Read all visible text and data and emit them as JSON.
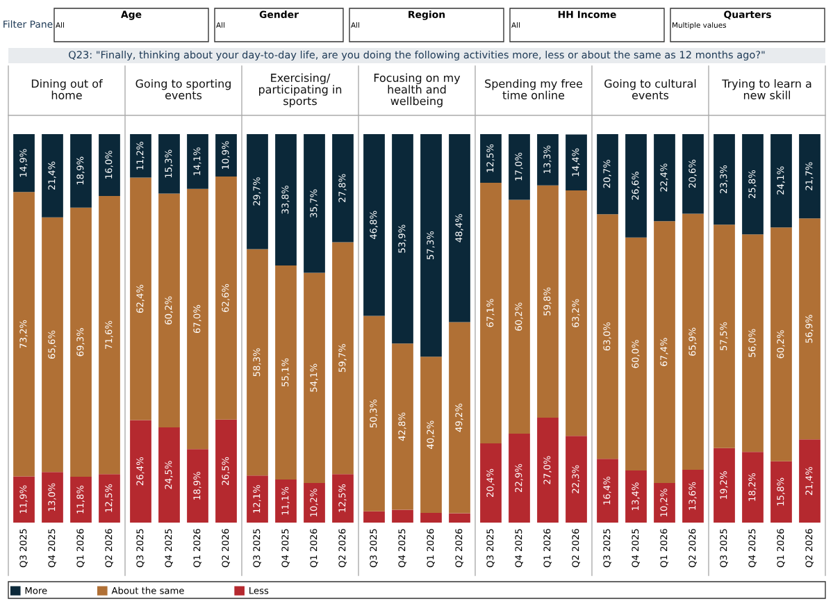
{
  "chart_data": [
    {
      "type": "other",
      "title": "Q23: \"Finally, thinking about your day-to-day life, are you doing the following activities more, less or about the same as 12 months ago?\"",
      "annotations": [
        "Filter Pane",
        "Age",
        "All",
        "Gender",
        "All",
        "Region",
        "All",
        "HH Income",
        "All",
        "Quarters",
        "Multiple values"
      ]
    },
    {
      "type": "bar",
      "stacked": true,
      "title": "Dining out of home",
      "categories": [
        "Q3 2025",
        "Q4 2025",
        "Q1 2026",
        "Q2 2026"
      ],
      "ylim": [
        0,
        100
      ],
      "tick_labels": "x",
      "legend": "bottom",
      "series": [
        {
          "name": "Less",
          "color": "#b5292f",
          "values": [
            11.9,
            13.0,
            11.8,
            12.5
          ],
          "value_labels": [
            "11,9%",
            "13,0%",
            "11,8%",
            "12,5%"
          ]
        },
        {
          "name": "About the same",
          "color": "#b07035",
          "values": [
            73.2,
            65.6,
            69.3,
            71.6
          ],
          "value_labels": [
            "73,2%",
            "65,6%",
            "69,3%",
            "71,6%"
          ]
        },
        {
          "name": "More",
          "color": "#0b2839",
          "values": [
            14.9,
            21.4,
            18.9,
            16.0
          ],
          "value_labels": [
            "14,9%",
            "21,4%",
            "18,9%",
            "16,0%"
          ]
        }
      ]
    },
    {
      "type": "bar",
      "stacked": true,
      "title": "Going to sporting events",
      "categories": [
        "Q3 2025",
        "Q4 2025",
        "Q1 2026",
        "Q2 2026"
      ],
      "ylim": [
        0,
        100
      ],
      "tick_labels": "x",
      "series": [
        {
          "color": "#b5292f",
          "values": [
            26.4,
            24.5,
            18.9,
            26.5
          ],
          "value_labels": [
            "26,4%",
            "24,5%",
            "18,9%",
            "26,5%"
          ]
        },
        {
          "color": "#b07035",
          "values": [
            62.4,
            60.2,
            67.0,
            62.6
          ],
          "value_labels": [
            "62,4%",
            "60,2%",
            "67,0%",
            "62,6%"
          ]
        },
        {
          "color": "#0b2839",
          "values": [
            11.2,
            15.3,
            14.1,
            10.9
          ],
          "value_labels": [
            "11,2%",
            "15,3%",
            "14,1%",
            "10,9%"
          ]
        }
      ]
    },
    {
      "type": "bar",
      "stacked": true,
      "title": "Exercising/ participating in sports",
      "categories": [
        "Q3 2025",
        "Q4 2025",
        "Q1 2026",
        "Q2 2026"
      ],
      "ylim": [
        0,
        100
      ],
      "tick_labels": "x",
      "series": [
        {
          "color": "#b5292f",
          "values": [
            12.1,
            11.1,
            10.2,
            12.5
          ],
          "value_labels": [
            "12,1%",
            "11,1%",
            "10,2%",
            "12,5%"
          ]
        },
        {
          "color": "#b07035",
          "values": [
            58.3,
            55.1,
            54.1,
            59.7
          ],
          "value_labels": [
            "58,3%",
            "55,1%",
            "54,1%",
            "59,7%"
          ]
        },
        {
          "color": "#0b2839",
          "values": [
            29.7,
            33.8,
            35.7,
            27.8
          ],
          "value_labels": [
            "29,7%",
            "33,8%",
            "35,7%",
            "27,8%"
          ]
        }
      ]
    },
    {
      "type": "bar",
      "stacked": true,
      "title": "Focusing on my health and wellbeing",
      "categories": [
        "Q3 2025",
        "Q4 2025",
        "Q1 2026",
        "Q2 2026"
      ],
      "ylim": [
        0,
        100
      ],
      "tick_labels": "x",
      "series": [
        {
          "color": "#b5292f",
          "values": [
            2.9,
            3.3,
            2.5,
            2.4
          ],
          "value_labels": [
            null,
            null,
            null,
            null
          ]
        },
        {
          "color": "#b07035",
          "values": [
            50.3,
            42.8,
            40.2,
            49.2
          ],
          "value_labels": [
            "50,3%",
            "42,8%",
            "40,2%",
            "49,2%"
          ]
        },
        {
          "color": "#0b2839",
          "values": [
            46.8,
            53.9,
            57.3,
            48.4
          ],
          "value_labels": [
            "46,8%",
            "53,9%",
            "57,3%",
            "48,4%"
          ]
        }
      ]
    },
    {
      "type": "bar",
      "stacked": true,
      "title": "Spending my free time online",
      "categories": [
        "Q3 2025",
        "Q4 2025",
        "Q1 2026",
        "Q2 2026"
      ],
      "ylim": [
        0,
        100
      ],
      "tick_labels": "x",
      "series": [
        {
          "color": "#b5292f",
          "values": [
            20.4,
            22.9,
            27.0,
            22.3
          ],
          "value_labels": [
            "20,4%",
            "22,9%",
            "27,0%",
            "22,3%"
          ]
        },
        {
          "color": "#b07035",
          "values": [
            67.1,
            60.2,
            59.8,
            63.2
          ],
          "value_labels": [
            "67,1%",
            "60,2%",
            "59,8%",
            "63,2%"
          ]
        },
        {
          "color": "#0b2839",
          "values": [
            12.5,
            17.0,
            13.3,
            14.4
          ],
          "value_labels": [
            "12,5%",
            "17,0%",
            "13,3%",
            "14,4%"
          ]
        }
      ]
    },
    {
      "type": "bar",
      "stacked": true,
      "title": "Going to cultural events",
      "categories": [
        "Q3 2025",
        "Q4 2025",
        "Q1 2026",
        "Q2 2026"
      ],
      "ylim": [
        0,
        100
      ],
      "tick_labels": "x",
      "series": [
        {
          "color": "#b5292f",
          "values": [
            16.4,
            13.4,
            10.2,
            13.6
          ],
          "value_labels": [
            "16,4%",
            "13,4%",
            "10,2%",
            "13,6%"
          ]
        },
        {
          "color": "#b07035",
          "values": [
            63.0,
            60.0,
            67.4,
            65.9
          ],
          "value_labels": [
            "63,0%",
            "60,0%",
            "67,4%",
            "65,9%"
          ]
        },
        {
          "color": "#0b2839",
          "values": [
            20.7,
            26.6,
            22.4,
            20.6
          ],
          "value_labels": [
            "20,7%",
            "26,6%",
            "22,4%",
            "20,6%"
          ]
        }
      ]
    },
    {
      "type": "bar",
      "stacked": true,
      "title": "Trying to learn a new skill",
      "categories": [
        "Q3 2025",
        "Q4 2025",
        "Q1 2026",
        "Q2 2026"
      ],
      "ylim": [
        0,
        100
      ],
      "tick_labels": "x",
      "series": [
        {
          "color": "#b5292f",
          "values": [
            19.2,
            18.2,
            15.8,
            21.4
          ],
          "value_labels": [
            "19,2%",
            "18,2%",
            "15,8%",
            "21,4%"
          ]
        },
        {
          "color": "#b07035",
          "values": [
            57.5,
            56.0,
            60.2,
            56.9
          ],
          "value_labels": [
            "57,5%",
            "56,0%",
            "60,2%",
            "56,9%"
          ]
        },
        {
          "color": "#0b2839",
          "values": [
            23.3,
            25.8,
            24.1,
            21.7
          ],
          "value_labels": [
            "23,3%",
            "25,8%",
            "24,1%",
            "21,7%"
          ]
        }
      ]
    }
  ]
}
